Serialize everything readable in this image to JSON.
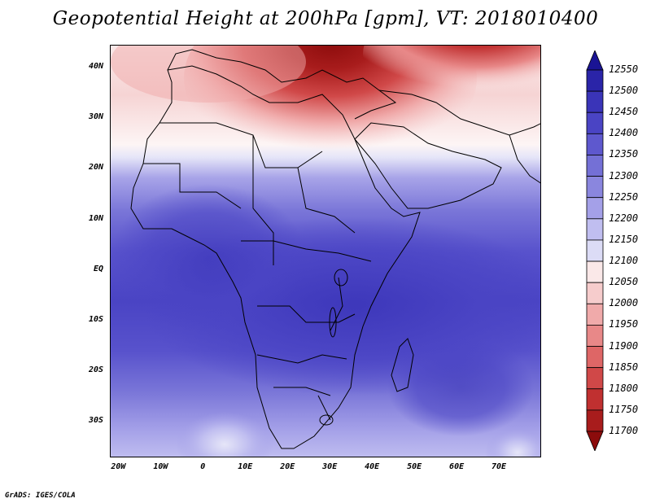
{
  "title": "Geopotential Height at 200hPa [gpm], VT: 2018010400",
  "credit": "GrADS: IGES/COLA",
  "lat_labels": [
    "40N",
    "30N",
    "20N",
    "10N",
    "EQ",
    "10S",
    "20S",
    "30S"
  ],
  "lat_values": [
    40,
    30,
    20,
    10,
    0,
    -10,
    -20,
    -30
  ],
  "lon_labels": [
    "20W",
    "10W",
    "0",
    "10E",
    "20E",
    "30E",
    "40E",
    "50E",
    "60E",
    "70E"
  ],
  "lon_values": [
    -20,
    -10,
    0,
    10,
    20,
    30,
    40,
    50,
    60,
    70
  ],
  "colorbar": {
    "labels": [
      "12550",
      "12500",
      "12450",
      "12400",
      "12350",
      "12300",
      "12250",
      "12200",
      "12150",
      "12100",
      "12050",
      "12000",
      "11950",
      "11900",
      "11850",
      "11800",
      "11750",
      "11700"
    ],
    "colors": [
      "#1a1494",
      "#2a24a8",
      "#3a34b8",
      "#4a44c4",
      "#5e58ce",
      "#7470d6",
      "#8a86de",
      "#a4a0e8",
      "#c0bef0",
      "#dcdcf6",
      "#fae8e8",
      "#f6cccc",
      "#f0aaaa",
      "#e88888",
      "#de6666",
      "#d04848",
      "#c03030",
      "#a81c1c",
      "#8c0c0c"
    ]
  }
}
